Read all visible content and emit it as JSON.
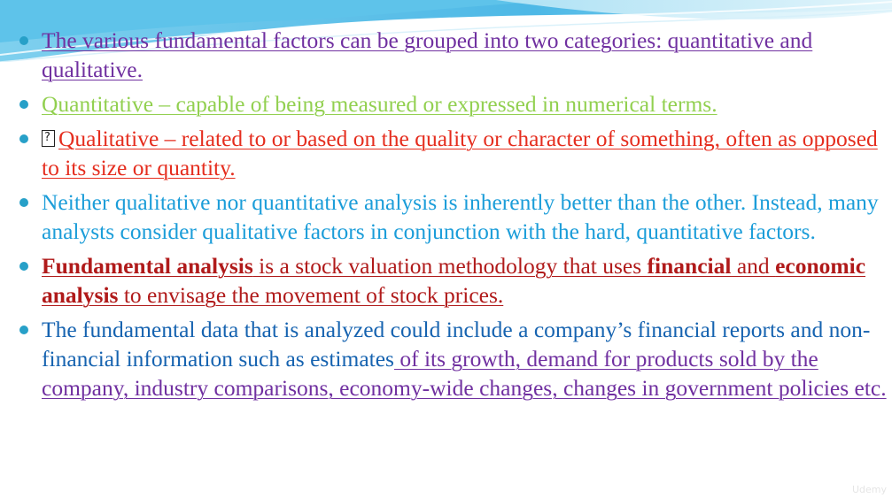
{
  "colors": {
    "purple": "#7030a0",
    "green": "#92d050",
    "red": "#e52d1e",
    "cyan": "#1b9dd9",
    "darkred": "#b01a1a",
    "blue": "#1663b0",
    "dot": "#27a0c8"
  },
  "bullets": [
    {
      "text": "The various fundamental factors can be grouped into two categories: quantitative and qualitative."
    },
    {
      "text": "Quantitative – capable of being measured or expressed in numerical terms."
    },
    {
      "icon": "missing-glyph-box-icon",
      "text": "Qualitative – related to or based on the quality or character of something, often as opposed to its size or quantity."
    },
    {
      "text": "Neither qualitative nor quantitative analysis is inherently better than the other. Instead, many analysts consider qualitative factors in conjunction with the hard, quantitative factors."
    },
    {
      "part1": "Fundamental analysis",
      "part2": " is a stock valuation methodology that uses ",
      "part3": "financial",
      "part4": " and ",
      "part5": "economic analysis",
      "part6": " to envisage the movement of stock prices."
    },
    {
      "part1": "The fundamental data that is analyzed could include a company’s financial reports and non-financial information such as estimates",
      "part2": " of its growth, demand for products sold by the company, industry comparisons, economy-wide changes, changes in government policies etc."
    }
  ],
  "watermark": "Udemy"
}
